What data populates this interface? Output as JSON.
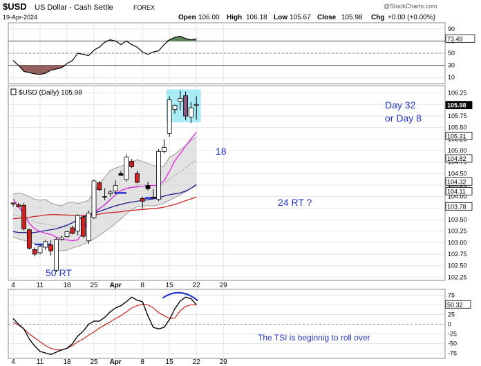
{
  "header": {
    "symbol": "$USD",
    "name": "US Dollar - Cash Settle",
    "exchange": "FOREX",
    "date": "19-Apr-2024",
    "open_label": "Open",
    "open": "106.00",
    "high_label": "High",
    "high": "106.18",
    "low_label": "Low",
    "low": "105.67",
    "close_label": "Close",
    "close": "105.98",
    "chg_label": "Chg",
    "chg": "+0.00 (+0.00%)",
    "watermark": "@StockCharts.com"
  },
  "rsi_panel": {
    "ticks": [
      90,
      70,
      50,
      30,
      10
    ],
    "ylim": [
      0,
      100
    ],
    "last_value": "73.49",
    "levels": [
      70,
      30
    ]
  },
  "price_panel": {
    "legend": "$USD (Daily) 105.98",
    "ticks": [
      106.25,
      106.0,
      105.75,
      105.5,
      105.25,
      105.0,
      104.75,
      104.5,
      104.25,
      104.0,
      103.75,
      103.5,
      103.25,
      103.0,
      102.75,
      102.5,
      102.25
    ],
    "ylim": [
      102.18,
      106.41
    ],
    "price_labels": [
      {
        "text": "105.98",
        "value": 105.98,
        "bg": "#000000",
        "fg": "#ffffff"
      },
      {
        "text": "105.31",
        "value": 105.31,
        "bg": "#ffffff",
        "fg": "#000000"
      },
      {
        "text": "104.82",
        "value": 104.82,
        "bg": "#ffffff",
        "fg": "#000000"
      },
      {
        "text": "104.32",
        "value": 104.32,
        "bg": "#ffffff",
        "fg": "#000000"
      },
      {
        "text": "104.11",
        "value": 104.11,
        "bg": "#ffffff",
        "fg": "#000000"
      },
      {
        "text": "103.78",
        "value": 103.78,
        "bg": "#ffffff",
        "fg": "#000000"
      }
    ],
    "annotations": {
      "label_50rt": "50 RT",
      "label_18": "18",
      "label_24rt": "24 RT ?",
      "label_day32": "Day 32",
      "label_day8": "or Day 8"
    }
  },
  "tsi_panel": {
    "ticks": [
      75,
      50,
      25,
      0,
      -25,
      -50,
      -75
    ],
    "ylim": [
      -88,
      90
    ],
    "last_value": "50.32",
    "annotation": "The TSI is beginnig to roll over"
  },
  "x_axis": {
    "labels": [
      {
        "text": "4",
        "index": 0
      },
      {
        "text": "11",
        "index": 5
      },
      {
        "text": "18",
        "index": 10
      },
      {
        "text": "25",
        "index": 15
      },
      {
        "text": "Apr",
        "index": 19
      },
      {
        "text": "8",
        "index": 24
      },
      {
        "text": "15",
        "index": 29
      },
      {
        "text": "22",
        "index": 34
      },
      {
        "text": "29",
        "index": 39
      }
    ]
  },
  "colors": {
    "up_candle": "#ffffff",
    "down_candle": "#cc2222",
    "accent_blue": "#2233cc",
    "rsi_fill_high": "#4e7a4e",
    "rsi_fill_low": "#8a4e4e",
    "ma_magenta": "#dd22dd",
    "ma_navy": "#1a1a8c",
    "ma_red": "#cc2222",
    "envelope_fill": "#dcdcdc",
    "highlight_box": "#66ddee"
  },
  "chart_data": {
    "type": "candlestick",
    "x": [
      "Mar 4",
      "Mar 5",
      "Mar 6",
      "Mar 7",
      "Mar 8",
      "Mar 11",
      "Mar 12",
      "Mar 13",
      "Mar 14",
      "Mar 15",
      "Mar 18",
      "Mar 19",
      "Mar 20",
      "Mar 21",
      "Mar 22",
      "Mar 25",
      "Mar 26",
      "Mar 27",
      "Mar 28",
      "Mar 29",
      "Apr 1",
      "Apr 2",
      "Apr 3",
      "Apr 4",
      "Apr 5",
      "Apr 8",
      "Apr 9",
      "Apr 10",
      "Apr 11",
      "Apr 12",
      "Apr 15",
      "Apr 16",
      "Apr 17",
      "Apr 18",
      "Apr 19"
    ],
    "candles": [
      {
        "o": 103.84,
        "h": 103.88,
        "l": 103.78,
        "c": 103.86,
        "color": "red"
      },
      {
        "o": 103.82,
        "h": 103.86,
        "l": 103.76,
        "c": 103.78,
        "color": "red"
      },
      {
        "o": 103.81,
        "h": 103.86,
        "l": 103.26,
        "c": 103.3,
        "color": "red"
      },
      {
        "o": 103.28,
        "h": 103.3,
        "l": 102.85,
        "c": 102.88,
        "color": "red"
      },
      {
        "o": 102.85,
        "h": 102.9,
        "l": 102.7,
        "c": 102.75,
        "color": "red"
      },
      {
        "o": 102.78,
        "h": 102.96,
        "l": 102.74,
        "c": 102.92,
        "color": "white"
      },
      {
        "o": 102.9,
        "h": 103.06,
        "l": 102.84,
        "c": 103.02,
        "color": "white"
      },
      {
        "o": 102.95,
        "h": 103.05,
        "l": 102.72,
        "c": 102.82,
        "color": "red"
      },
      {
        "o": 102.4,
        "h": 103.11,
        "l": 102.36,
        "c": 103.07,
        "color": "white"
      },
      {
        "o": 103.07,
        "h": 103.16,
        "l": 103.04,
        "c": 103.1,
        "color": "white"
      },
      {
        "o": 103.13,
        "h": 103.26,
        "l": 103.11,
        "c": 103.24,
        "color": "white"
      },
      {
        "o": 103.32,
        "h": 103.36,
        "l": 103.18,
        "c": 103.2,
        "color": "red"
      },
      {
        "o": 103.25,
        "h": 103.62,
        "l": 103.16,
        "c": 103.59,
        "color": "white"
      },
      {
        "o": 103.56,
        "h": 103.58,
        "l": 103.1,
        "c": 103.14,
        "color": "red"
      },
      {
        "o": 103.04,
        "h": 103.7,
        "l": 102.97,
        "c": 103.64,
        "color": "white"
      },
      {
        "o": 103.54,
        "h": 104.37,
        "l": 103.51,
        "c": 104.34,
        "color": "white"
      },
      {
        "o": 104.3,
        "h": 104.34,
        "l": 104.12,
        "c": 104.15,
        "color": "red"
      },
      {
        "o": 104.0,
        "h": 104.18,
        "l": 103.92,
        "c": 104.0,
        "color": "white"
      },
      {
        "o": 104.06,
        "h": 104.14,
        "l": 104.0,
        "c": 104.1,
        "color": "white"
      },
      {
        "o": 104.12,
        "h": 104.35,
        "l": 104.08,
        "c": 104.24,
        "color": "white"
      },
      {
        "o": 104.46,
        "h": 104.56,
        "l": 104.46,
        "c": 104.5,
        "color": "black"
      },
      {
        "o": 104.37,
        "h": 104.92,
        "l": 104.33,
        "c": 104.86,
        "color": "white"
      },
      {
        "o": 104.77,
        "h": 104.82,
        "l": 104.62,
        "c": 104.65,
        "color": "red"
      },
      {
        "o": 104.5,
        "h": 104.56,
        "l": 104.29,
        "c": 104.31,
        "color": "red"
      },
      {
        "o": 103.96,
        "h": 104.0,
        "l": 103.74,
        "c": 103.9,
        "color": "red"
      },
      {
        "o": 104.24,
        "h": 104.32,
        "l": 104.13,
        "c": 104.17,
        "color": "black"
      },
      {
        "o": 103.97,
        "h": 104.16,
        "l": 103.94,
        "c": 103.99,
        "color": "red"
      },
      {
        "o": 103.94,
        "h": 105.03,
        "l": 103.9,
        "c": 104.98,
        "color": "white"
      },
      {
        "o": 104.98,
        "h": 105.24,
        "l": 104.94,
        "c": 105.07,
        "color": "white"
      },
      {
        "o": 105.37,
        "h": 106.18,
        "l": 105.3,
        "c": 106.1,
        "color": "white"
      },
      {
        "o": 105.89,
        "h": 106.0,
        "l": 105.8,
        "c": 105.98,
        "color": "white"
      },
      {
        "o": 106.07,
        "h": 106.3,
        "l": 105.87,
        "c": 106.13,
        "color": "white"
      },
      {
        "o": 106.19,
        "h": 106.28,
        "l": 105.66,
        "c": 105.75,
        "color": "purple"
      },
      {
        "o": 105.73,
        "h": 106.05,
        "l": 105.6,
        "c": 105.93,
        "color": "white"
      },
      {
        "o": 106.0,
        "h": 106.18,
        "l": 105.67,
        "c": 105.98,
        "color": "white"
      }
    ],
    "rsi": [
      38,
      30,
      20,
      18,
      16,
      15,
      17,
      22,
      24,
      26,
      33,
      38,
      50,
      48,
      46,
      55,
      60,
      68,
      72,
      70,
      64,
      70,
      64,
      60,
      52,
      48,
      52,
      54,
      64,
      72,
      76,
      78,
      74,
      72,
      73.49
    ],
    "tsi": [
      15,
      0,
      -12,
      -38,
      -56,
      -70,
      -74,
      -78,
      -72,
      -66,
      -62,
      -50,
      -30,
      -18,
      0,
      8,
      8,
      18,
      32,
      42,
      48,
      58,
      70,
      62,
      58,
      22,
      -8,
      -12,
      -8,
      12,
      40,
      60,
      70,
      66,
      50.32
    ],
    "tsi_signal": [
      5,
      -2,
      -12,
      -25,
      -35,
      -45,
      -55,
      -62,
      -66,
      -66,
      -62,
      -55,
      -45,
      -38,
      -28,
      -20,
      -10,
      -2,
      6,
      15,
      22,
      32,
      42,
      48,
      52,
      50,
      42,
      30,
      22,
      15,
      16,
      35,
      46,
      50,
      50
    ],
    "series": [
      {
        "name": "magenta_ma",
        "values": [
          103.95,
          103.78,
          103.62,
          103.42,
          103.3,
          103.24,
          103.2,
          103.18,
          103.12,
          103.07,
          103.06,
          103.04,
          103.06,
          103.24,
          103.5,
          103.66,
          103.74,
          103.82,
          103.93,
          104.04,
          104.13,
          104.18,
          104.2,
          104.21,
          104.22,
          104.24,
          104.24,
          104.25,
          104.34,
          104.55,
          104.78,
          104.93,
          105.1,
          105.25,
          105.4
        ]
      },
      {
        "name": "navy_ma",
        "values": [
          103.24,
          103.22,
          103.22,
          103.21,
          103.22,
          103.24,
          103.26,
          103.28,
          103.3,
          103.34,
          103.38,
          103.43,
          103.5,
          103.56,
          103.6,
          103.64,
          103.68,
          103.72,
          103.76,
          103.8,
          103.83,
          103.86,
          103.88,
          103.9,
          103.92,
          103.93,
          103.95,
          103.98,
          104.01,
          104.04,
          104.06,
          104.08,
          104.12,
          104.18,
          104.26
        ]
      },
      {
        "name": "red_ma",
        "values": [
          103.52,
          103.53,
          103.54,
          103.55,
          103.57,
          103.58,
          103.6,
          103.61,
          103.61,
          103.6,
          103.6,
          103.59,
          103.59,
          103.59,
          103.6,
          103.6,
          103.62,
          103.64,
          103.65,
          103.66,
          103.67,
          103.69,
          103.7,
          103.71,
          103.72,
          103.73,
          103.74,
          103.75,
          103.77,
          103.8,
          103.83,
          103.87,
          103.91,
          103.95,
          103.99
        ]
      },
      {
        "name": "env_upper",
        "values": [
          104.05,
          104.08,
          104.05,
          104.0,
          103.94,
          103.92,
          103.94,
          103.86,
          103.82,
          103.8,
          103.86,
          103.88,
          103.85,
          103.88,
          103.92,
          104.1,
          104.27,
          104.42,
          104.56,
          104.62,
          104.66,
          104.7,
          104.75,
          104.8,
          104.76,
          104.72,
          104.68,
          104.64,
          104.66,
          104.85,
          104.92,
          105.02,
          105.1,
          105.22,
          105.3
        ]
      },
      {
        "name": "env_lower",
        "values": [
          103.12,
          103.08,
          103.05,
          103.02,
          102.98,
          102.94,
          102.92,
          102.88,
          102.85,
          102.82,
          102.84,
          102.88,
          102.92,
          102.96,
          103.02,
          103.08,
          103.16,
          103.24,
          103.32,
          103.42,
          103.52,
          103.62,
          103.72,
          103.78,
          103.8,
          103.8,
          103.8,
          103.82,
          103.86,
          103.92,
          103.98,
          104.04,
          104.1,
          104.18,
          104.24
        ]
      },
      {
        "name": "env_mid",
        "values": [
          103.6,
          103.58,
          103.55,
          103.5,
          103.45,
          103.42,
          103.4,
          103.38,
          103.35,
          103.32,
          103.34,
          103.36,
          103.38,
          103.42,
          103.47,
          103.58,
          103.72,
          103.84,
          103.95,
          104.02,
          104.08,
          104.14,
          104.2,
          104.25,
          104.26,
          104.25,
          104.24,
          104.24,
          104.27,
          104.38,
          104.46,
          104.54,
          104.62,
          104.72,
          104.8
        ]
      }
    ]
  }
}
